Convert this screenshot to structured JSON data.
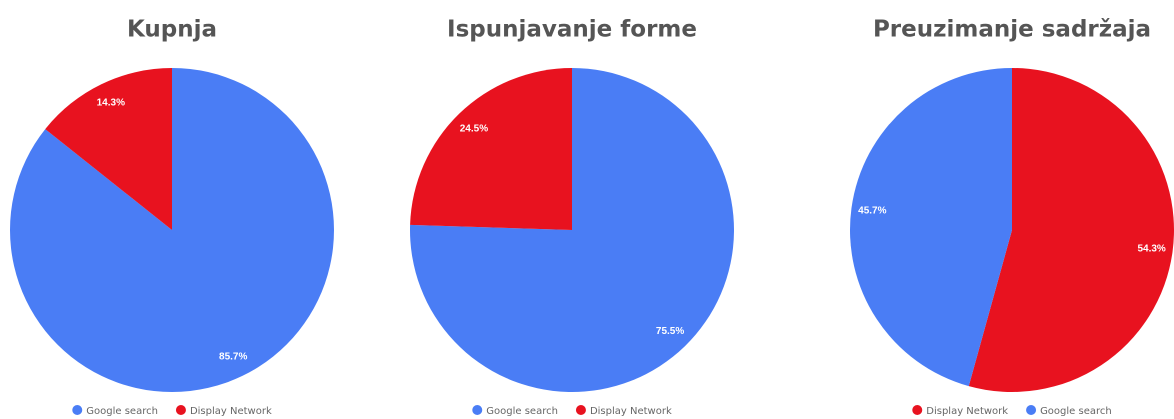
{
  "chart_data": [
    {
      "type": "pie",
      "title": "Kupnja",
      "categories": [
        "Google search",
        "Display Network"
      ],
      "values": [
        85.7,
        14.3
      ],
      "value_labels": [
        "85.7%",
        "14.3%"
      ],
      "colors": [
        "#4a7df5",
        "#e8121f"
      ]
    },
    {
      "type": "pie",
      "title": "Ispunjavanje forme",
      "categories": [
        "Google search",
        "Display Network"
      ],
      "values": [
        75.5,
        24.5
      ],
      "value_labels": [
        "75.5%",
        "24.5%"
      ],
      "colors": [
        "#4a7df5",
        "#e8121f"
      ]
    },
    {
      "type": "pie",
      "title": "Preuzimanje sadržaja",
      "categories": [
        "Display Network",
        "Google search"
      ],
      "values": [
        54.3,
        45.7
      ],
      "value_labels": [
        "54.3%",
        "45.7%"
      ],
      "colors": [
        "#e8121f",
        "#4a7df5"
      ]
    }
  ]
}
